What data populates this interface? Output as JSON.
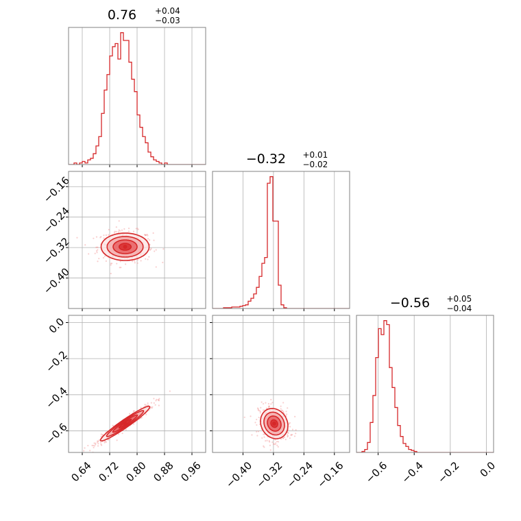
{
  "chart_data": {
    "type": "corner",
    "color": "#d62728",
    "fill_colors": [
      "#fbe3e3",
      "#f3a5a6",
      "#e6585b",
      "#d62728"
    ],
    "panels": [
      {
        "id": "hist-0",
        "kind": "hist",
        "row": 0,
        "col": 0,
        "title": {
          "median": "0.76",
          "plus": "+0.04",
          "minus": "−0.03"
        },
        "xlim": [
          0.6,
          1.0
        ],
        "xticks": [
          0.64,
          0.72,
          0.8,
          0.88,
          0.96
        ],
        "edges": [
          0.6,
          0.608,
          0.616,
          0.624,
          0.632,
          0.64,
          0.648,
          0.656,
          0.664,
          0.672,
          0.68,
          0.688,
          0.696,
          0.704,
          0.712,
          0.72,
          0.728,
          0.736,
          0.744,
          0.752,
          0.76,
          0.768,
          0.776,
          0.784,
          0.792,
          0.8,
          0.808,
          0.816,
          0.824,
          0.832,
          0.84,
          0.848,
          0.856,
          0.864,
          0.872,
          0.88,
          0.888,
          0.896,
          0.904,
          0.912,
          0.92,
          0.928,
          0.936,
          0.944,
          0.952,
          0.96,
          0.968,
          0.976,
          0.984,
          0.992,
          1.0
        ],
        "counts": [
          0,
          0,
          1,
          0,
          1,
          2,
          1,
          3,
          4,
          7,
          12,
          18,
          33,
          48,
          58,
          70,
          76,
          78,
          68,
          85,
          80,
          80,
          66,
          55,
          47,
          32,
          24,
          18,
          14,
          8,
          5,
          3,
          2,
          1,
          0,
          1,
          0,
          0,
          0,
          0,
          0,
          0,
          0,
          0,
          0,
          0,
          0,
          0,
          0,
          0
        ]
      },
      {
        "id": "hist-1",
        "kind": "hist",
        "row": 1,
        "col": 1,
        "title": {
          "median": "−0.32",
          "plus": "+0.01",
          "minus": "−0.02"
        },
        "xlim": [
          -0.48,
          -0.12
        ],
        "xticks": [
          -0.4,
          -0.32,
          -0.24,
          -0.16
        ],
        "edges": [
          -0.48,
          -0.4728,
          -0.4656,
          -0.4584,
          -0.4512,
          -0.444,
          -0.4368,
          -0.4296,
          -0.4224,
          -0.4152,
          -0.408,
          -0.4008,
          -0.3936,
          -0.3864,
          -0.3792,
          -0.372,
          -0.3648,
          -0.3576,
          -0.3504,
          -0.3432,
          -0.336,
          -0.3288,
          -0.3216,
          -0.3144,
          -0.3072,
          -0.3,
          -0.2928,
          -0.2856,
          -0.2784,
          -0.2712,
          -0.264,
          -0.2568,
          -0.2496,
          -0.2424,
          -0.2352,
          -0.228,
          -0.2208,
          -0.2136,
          -0.2064,
          -0.1992,
          -0.192,
          -0.1848,
          -0.1776,
          -0.1704,
          -0.1632,
          -0.156,
          -0.1488,
          -0.1416,
          -0.1344,
          -0.1272,
          -0.12
        ],
        "counts": [
          0,
          0,
          0,
          0,
          1,
          1,
          1,
          2,
          2,
          2,
          3,
          4,
          5,
          10,
          14,
          20,
          29,
          44,
          62,
          70,
          172,
          181,
          120,
          120,
          32,
          5,
          1,
          0,
          0,
          0,
          0,
          0,
          0,
          0,
          0,
          0,
          0,
          0,
          0,
          0,
          0,
          0,
          0,
          0,
          0,
          0,
          0,
          0,
          0,
          0
        ]
      },
      {
        "id": "hist-2",
        "kind": "hist",
        "row": 2,
        "col": 2,
        "title": {
          "median": "−0.56",
          "plus": "+0.05",
          "minus": "−0.04"
        },
        "xlim": [
          -0.72,
          0.04
        ],
        "xticks": [
          -0.6,
          -0.4,
          -0.2,
          0.0
        ],
        "edges": [
          -0.72,
          -0.7048,
          -0.6896,
          -0.6744,
          -0.6592,
          -0.644,
          -0.6288,
          -0.6136,
          -0.5984,
          -0.5832,
          -0.568,
          -0.5528,
          -0.5376,
          -0.5224,
          -0.5072,
          -0.492,
          -0.4768,
          -0.4616,
          -0.4464,
          -0.4312,
          -0.416,
          -0.4008,
          -0.3856,
          -0.3704,
          -0.3552,
          -0.34,
          -0.3248,
          -0.3096,
          -0.2944,
          -0.2792,
          -0.264,
          -0.2488,
          -0.2336,
          -0.2184,
          -0.2032,
          -0.188,
          -0.1728,
          -0.1576,
          -0.1424,
          -0.1272,
          -0.112,
          -0.0968,
          -0.0816,
          -0.0664,
          -0.0512,
          -0.036,
          -0.0208,
          -0.0056,
          0.0096,
          0.0248,
          0.04
        ],
        "counts": [
          0,
          0,
          1,
          3,
          10,
          30,
          57,
          95,
          124,
          118,
          132,
          128,
          85,
          65,
          45,
          27,
          16,
          9,
          6,
          3,
          2,
          1,
          0,
          0,
          0,
          0,
          0,
          0,
          0,
          0,
          0,
          0,
          0,
          0,
          0,
          0,
          0,
          0,
          0,
          0,
          0,
          0,
          0,
          0,
          0,
          0,
          0,
          0,
          0,
          0
        ]
      },
      {
        "id": "scatter-1-0",
        "kind": "2d",
        "row": 1,
        "col": 0,
        "xlim": [
          0.6,
          1.0
        ],
        "ylim": [
          -0.48,
          -0.12
        ],
        "xticks": [
          0.64,
          0.72,
          0.8,
          0.88,
          0.96
        ],
        "yticks": [
          -0.16,
          -0.24,
          -0.32,
          -0.4
        ],
        "center": [
          0.765,
          -0.318
        ],
        "spread": [
          0.035,
          0.018
        ],
        "rho": 0.0,
        "levels": [
          0.5,
          1.0,
          1.5,
          2.0
        ]
      },
      {
        "id": "scatter-2-0",
        "kind": "2d",
        "row": 2,
        "col": 0,
        "xlim": [
          0.6,
          1.0
        ],
        "ylim": [
          -0.72,
          0.04
        ],
        "xticks": [
          0.64,
          0.72,
          0.8,
          0.88,
          0.96
        ],
        "yticks": [
          0.0,
          -0.2,
          -0.4,
          -0.6
        ],
        "center": [
          0.765,
          -0.56
        ],
        "spread": [
          0.036,
          0.048
        ],
        "rho": 0.96,
        "levels": [
          0.5,
          1.0,
          1.5,
          2.0
        ]
      },
      {
        "id": "scatter-2-1",
        "kind": "2d",
        "row": 2,
        "col": 1,
        "xlim": [
          -0.48,
          -0.12
        ],
        "ylim": [
          -0.72,
          0.04
        ],
        "xticks": [
          -0.4,
          -0.32,
          -0.24,
          -0.16
        ],
        "yticks": [],
        "center": [
          -0.318,
          -0.56
        ],
        "spread": [
          0.018,
          0.042
        ],
        "rho": -0.15,
        "levels": [
          0.5,
          1.0,
          1.5,
          2.0
        ]
      }
    ]
  }
}
